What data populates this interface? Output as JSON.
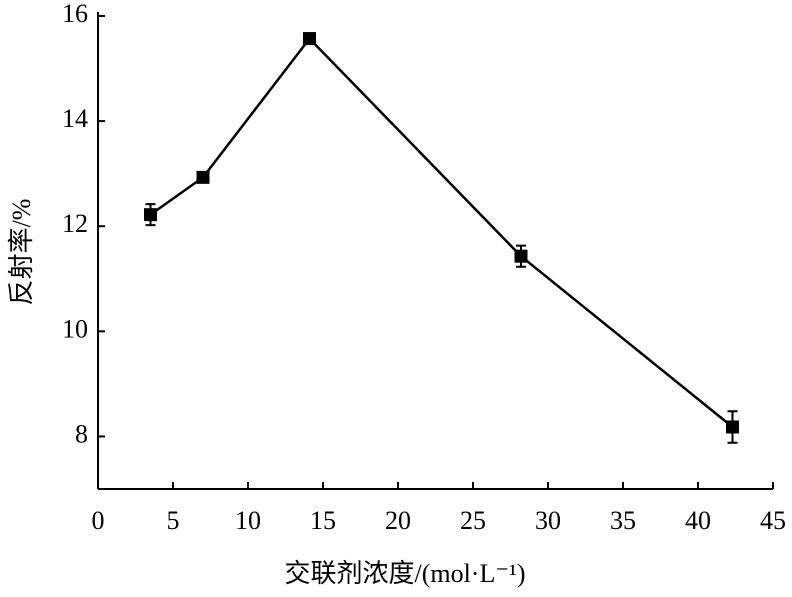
{
  "chart_data": {
    "type": "line",
    "x_label": "交联剂浓度/(mol·L⁻¹)",
    "y_label": "反射率/%",
    "x": [
      3.5,
      7.0,
      14.1,
      28.2,
      42.3
    ],
    "values": [
      12.22,
      12.93,
      15.57,
      11.43,
      8.18
    ],
    "errors": [
      0.2,
      0.05,
      0.1,
      0.2,
      0.3
    ],
    "color": "#000000",
    "xlim": [
      0,
      45
    ],
    "xticks": [
      0,
      5,
      10,
      15,
      20,
      25,
      30,
      35,
      40,
      45
    ],
    "ylim": [
      7,
      16
    ],
    "yticks": [
      8,
      10,
      12,
      14,
      16
    ]
  }
}
